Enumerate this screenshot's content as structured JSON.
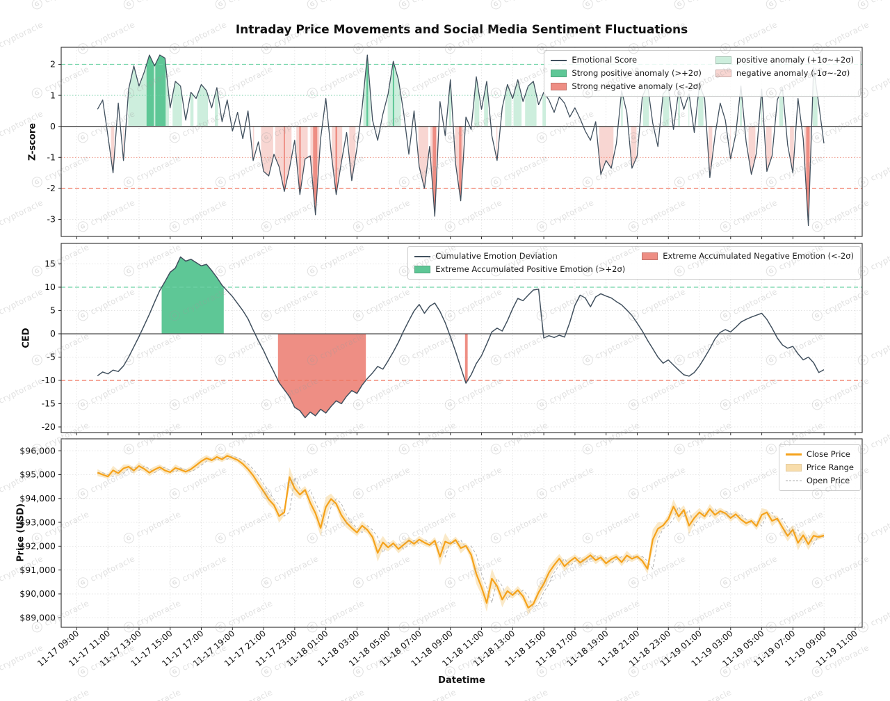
{
  "title": "Intraday Price Movements and Social Media Sentiment Fluctuations",
  "watermark": {
    "text": "cryptoracle",
    "logo_letter": "G"
  },
  "colors": {
    "line_dark": "#41505e",
    "strong_pos_fill": "#5ec796",
    "pos_fill": "#cdeedd",
    "strong_neg_fill": "#ee8e84",
    "neg_fill": "#f8d6d2",
    "pos_threshold_line": "#6fd3a6",
    "neg_threshold_line": "#f0755f",
    "zero_line": "#4a4a4a",
    "close_line": "#f5a21b",
    "band_fill": "#f8ddab",
    "open_line": "#b4b4b4",
    "grid": "#bfbfbf",
    "spine": "#2b2b2b"
  },
  "x_axis": {
    "label": "Datetime",
    "xlim_hours": [
      -1.0,
      50.45
    ],
    "tick_start_hour": 0,
    "tick_step_hours": 2,
    "tick_labels": [
      "11-17 09:00",
      "11-17 11:00",
      "11-17 13:00",
      "11-17 15:00",
      "11-17 17:00",
      "11-17 19:00",
      "11-17 21:00",
      "11-17 23:00",
      "11-18 01:00",
      "11-18 03:00",
      "11-18 05:00",
      "11-18 07:00",
      "11-18 09:00",
      "11-18 11:00",
      "11-18 13:00",
      "11-18 15:00",
      "11-18 17:00",
      "11-18 19:00",
      "11-18 21:00",
      "11-18 23:00",
      "11-19 01:00",
      "11-19 03:00",
      "11-19 05:00",
      "11-19 07:00",
      "11-19 09:00",
      "11-19 11:00"
    ]
  },
  "chart_data": [
    {
      "type": "line",
      "name": "emotion-zscore",
      "ylabel": "Z-score",
      "ylim": [
        -3.55,
        2.55
      ],
      "yticks": [
        2,
        1,
        0,
        -1,
        -2,
        -3
      ],
      "thresholds": {
        "strong_pos": 2,
        "pos": 1,
        "neg": -1,
        "strong_neg": -2
      },
      "x_start_hour": 1.3333,
      "x_step_hours": 0.3333,
      "series": [
        {
          "name": "Emotional Score",
          "values": [
            0.55,
            0.85,
            -0.3,
            -1.5,
            0.75,
            -1.1,
            1.2,
            1.95,
            1.3,
            1.75,
            2.3,
            1.95,
            2.3,
            2.2,
            0.6,
            1.45,
            1.3,
            0.2,
            1.1,
            0.9,
            1.35,
            1.15,
            0.6,
            1.25,
            0.15,
            0.85,
            -0.15,
            0.45,
            -0.4,
            0.5,
            -1.1,
            -0.5,
            -1.45,
            -1.6,
            -0.9,
            -1.3,
            -2.1,
            -1.35,
            -0.45,
            -2.2,
            -1.05,
            -0.95,
            -2.85,
            -0.4,
            0.9,
            -0.8,
            -2.2,
            -1.15,
            -0.2,
            -1.75,
            -0.7,
            0.6,
            2.3,
            0.2,
            -0.45,
            0.4,
            1.05,
            2.1,
            1.5,
            0.45,
            -0.9,
            0.5,
            -1.3,
            -2.0,
            -0.65,
            -2.9,
            0.8,
            -0.3,
            1.5,
            -1.2,
            -2.4,
            0.3,
            -0.1,
            1.6,
            0.55,
            1.45,
            -0.3,
            -1.1,
            0.6,
            1.35,
            0.9,
            1.5,
            0.8,
            1.3,
            1.45,
            0.7,
            1.1,
            0.85,
            0.45,
            0.95,
            0.75,
            0.3,
            0.6,
            0.25,
            -0.15,
            -0.45,
            0.15,
            -1.55,
            -1.1,
            -1.35,
            -0.55,
            1.15,
            0.45,
            -1.35,
            -0.95,
            0.95,
            1.35,
            0.1,
            -0.65,
            1.05,
            1.25,
            -0.1,
            1.15,
            0.55,
            1.05,
            -0.2,
            1.35,
            0.9,
            -1.65,
            -0.3,
            0.75,
            0.2,
            -1.05,
            -0.25,
            1.3,
            -0.5,
            -1.55,
            -0.85,
            1.2,
            -1.45,
            -0.95,
            0.85,
            1.25,
            -0.6,
            -1.5,
            0.9,
            -0.4,
            -3.2,
            1.9,
            0.7,
            -0.55
          ]
        }
      ],
      "legend": [
        {
          "label": "Emotional Score",
          "type": "line"
        },
        {
          "label": "Strong positive anomaly (>+2σ)",
          "type": "patch-strong-pos"
        },
        {
          "label": "Strong negative anomaly (<-2σ)",
          "type": "patch-strong-neg"
        },
        {
          "label": "positive anomaly (+1σ~+2σ)",
          "type": "patch-pos"
        },
        {
          "label": "negative anomaly (-1σ~-2σ)",
          "type": "patch-neg"
        }
      ]
    },
    {
      "type": "line",
      "name": "cumulative-emotion-deviation",
      "ylabel": "CED",
      "ylim": [
        -21.2,
        19.4
      ],
      "yticks": [
        15,
        10,
        5,
        0,
        -5,
        -10,
        -15,
        -20
      ],
      "thresholds": {
        "pos": 10,
        "neg": -10
      },
      "x_start_hour": 1.3333,
      "x_step_hours": 0.3333,
      "series": [
        {
          "name": "Cumulative Emotion Deviation",
          "values": [
            -9.0,
            -8.2,
            -8.6,
            -7.8,
            -8.1,
            -6.9,
            -5.0,
            -2.8,
            -0.6,
            1.8,
            4.2,
            6.8,
            9.3,
            11.2,
            13.2,
            14.1,
            16.5,
            15.6,
            16.0,
            15.3,
            14.6,
            14.9,
            13.6,
            12.1,
            10.4,
            9.2,
            8.0,
            6.5,
            5.0,
            3.2,
            0.8,
            -1.5,
            -3.6,
            -6.0,
            -8.2,
            -10.5,
            -12.0,
            -13.5,
            -15.8,
            -16.5,
            -18.0,
            -16.8,
            -17.6,
            -16.2,
            -17.0,
            -15.6,
            -14.4,
            -15.0,
            -13.4,
            -12.2,
            -12.8,
            -11.0,
            -9.6,
            -8.4,
            -7.0,
            -7.6,
            -5.8,
            -3.9,
            -1.8,
            0.6,
            2.8,
            4.9,
            6.3,
            4.4,
            5.9,
            6.6,
            4.8,
            2.4,
            -0.6,
            -3.8,
            -7.2,
            -10.6,
            -8.8,
            -6.4,
            -4.7,
            -2.2,
            0.4,
            1.2,
            0.6,
            2.8,
            5.4,
            7.6,
            7.1,
            8.3,
            9.4,
            9.6,
            -0.9,
            -0.4,
            -0.8,
            -0.3,
            -0.7,
            2.4,
            6.1,
            8.3,
            7.7,
            5.8,
            7.9,
            8.6,
            8.1,
            7.7,
            6.9,
            6.2,
            5.1,
            3.9,
            2.3,
            0.6,
            -1.4,
            -3.2,
            -5.0,
            -6.3,
            -5.6,
            -6.7,
            -7.8,
            -8.8,
            -9.1,
            -8.3,
            -6.9,
            -5.1,
            -3.2,
            -1.1,
            0.3,
            0.9,
            0.4,
            1.4,
            2.5,
            3.1,
            3.6,
            4.0,
            4.4,
            3.1,
            1.2,
            -0.9,
            -2.4,
            -3.1,
            -2.7,
            -4.3,
            -5.6,
            -5.0,
            -6.2,
            -8.3,
            -7.7
          ]
        }
      ],
      "legend": [
        {
          "label": "Cumulative Emotion Deviation",
          "type": "line"
        },
        {
          "label": "Extreme Accumulated Positive Emotion (>+2σ)",
          "type": "patch-strong-pos"
        },
        {
          "label": "Extreme Accumulated Negative Emotion (<-2σ)",
          "type": "patch-strong-neg"
        }
      ]
    },
    {
      "type": "line",
      "name": "price",
      "ylabel": "Price (USD)",
      "ylim": [
        88600,
        96500
      ],
      "yticks": [
        96000,
        95000,
        94000,
        93000,
        92000,
        91000,
        90000,
        89000
      ],
      "ytick_labels": [
        "$96,000",
        "$95,000",
        "$94,000",
        "$93,000",
        "$92,000",
        "$91,000",
        "$90,000",
        "$89,000"
      ],
      "x_start_hour": 1.3333,
      "x_step_hours": 0.3333,
      "band": {
        "name": "Price Range",
        "spread_base": 70,
        "spread_k": 0.45,
        "spread_cap": 420
      },
      "series": [
        {
          "name": "Close Price",
          "values": [
            95080,
            95000,
            94920,
            95180,
            95060,
            95260,
            95330,
            95170,
            95360,
            95240,
            95080,
            95210,
            95310,
            95170,
            95100,
            95280,
            95210,
            95120,
            95230,
            95390,
            95560,
            95690,
            95600,
            95740,
            95640,
            95790,
            95700,
            95610,
            95450,
            95230,
            94960,
            94620,
            94300,
            93960,
            93720,
            93260,
            93420,
            94890,
            94420,
            94160,
            94360,
            93820,
            93380,
            92760,
            93640,
            93980,
            93780,
            93300,
            92980,
            92760,
            92570,
            92860,
            92680,
            92380,
            91720,
            92160,
            91950,
            92120,
            91880,
            92060,
            92240,
            92100,
            92280,
            92150,
            92050,
            92230,
            91560,
            92190,
            92100,
            92260,
            91920,
            92010,
            91640,
            90840,
            90280,
            89620,
            90640,
            90330,
            89760,
            90120,
            89950,
            90160,
            89900,
            89420,
            89580,
            90060,
            90420,
            90890,
            91210,
            91480,
            91160,
            91360,
            91520,
            91310,
            91460,
            91620,
            91410,
            91530,
            91280,
            91450,
            91560,
            91330,
            91610,
            91470,
            91570,
            91380,
            91050,
            92280,
            92730,
            92870,
            93140,
            93660,
            93240,
            93520,
            92860,
            93180,
            93420,
            93250,
            93560,
            93310,
            93470,
            93380,
            93180,
            93340,
            93120,
            92960,
            93060,
            92840,
            93310,
            93420,
            93060,
            93160,
            92790,
            92430,
            92690,
            92140,
            92460,
            92080,
            92440,
            92380,
            92450
          ]
        }
      ],
      "legend": [
        {
          "label": "Close Price",
          "type": "line-close"
        },
        {
          "label": "Price Range",
          "type": "patch-band"
        },
        {
          "label": "Open Price",
          "type": "dash-open"
        }
      ]
    }
  ]
}
